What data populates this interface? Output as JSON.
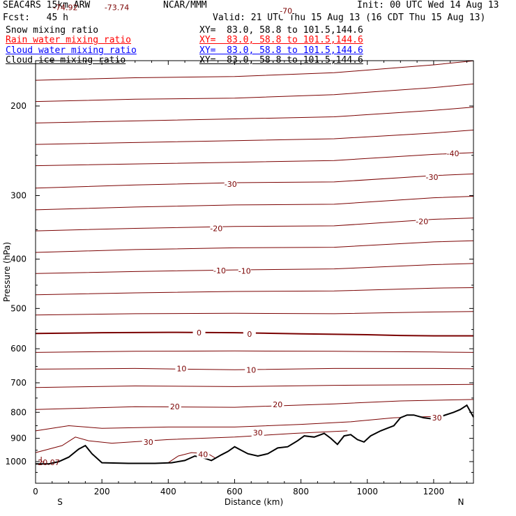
{
  "header": {
    "model": "SEAC4RS 15km ARW",
    "center": "NCAR/MMM",
    "init": "Init: 00 UTC Wed 14 Aug 13",
    "fcst": "Fcst:   45 h",
    "valid": "Valid: 21 UTC Thu 15 Aug 13 (16 CDT Thu 15 Aug 13)"
  },
  "fields": [
    {
      "name": "Snow mixing ratio",
      "xy": "XY=  83.0, 58.8 to 101.5,144.6",
      "color": "#000000"
    },
    {
      "name": "Rain water mixing ratio",
      "xy": "XY=  83.0, 58.8 to 101.5,144.6",
      "color": "#ff0000"
    },
    {
      "name": "Cloud water mixing ratio",
      "xy": "XY=  83.0, 58.8 to 101.5,144.6",
      "color": "#0000ff"
    },
    {
      "name": "Cloud ice mixing ratio",
      "xy": "XY=  83.0, 58.8 to 101.5,144.6",
      "color": "#000000"
    }
  ],
  "chart_data": {
    "type": "line",
    "xlabel": "Distance (km)",
    "ylabel": "Pressure (hPa)",
    "xlim": [
      0,
      1320
    ],
    "ylim": [
      1050,
      100
    ],
    "y_scale": "log",
    "x_ticks": [
      "0",
      "200",
      "400",
      "600",
      "800",
      "1000",
      "1200"
    ],
    "y_ticks": [
      "200",
      "300",
      "400",
      "500",
      "600",
      "700",
      "800",
      "900",
      "1000"
    ],
    "x_end_labels": {
      "left": "S",
      "right": "N"
    },
    "contour_color": "#7a0000",
    "isotherms": [
      {
        "label": "-70",
        "points": [
          [
            0,
            135
          ],
          [
            150,
            135
          ],
          [
            300,
            131
          ],
          [
            500,
            130
          ],
          [
            700,
            128
          ],
          [
            900,
            123
          ],
          [
            960,
            110
          ]
        ]
      },
      {
        "label": "",
        "points": [
          [
            0,
            148
          ],
          [
            300,
            146
          ],
          [
            600,
            145
          ],
          [
            900,
            142
          ],
          [
            1200,
            132
          ],
          [
            1320,
            130
          ]
        ]
      },
      {
        "label": "",
        "points": [
          [
            0,
            162
          ],
          [
            300,
            160
          ],
          [
            600,
            159
          ],
          [
            900,
            156
          ],
          [
            1200,
            150
          ],
          [
            1320,
            147
          ]
        ]
      },
      {
        "label": "",
        "points": [
          [
            0,
            178
          ],
          [
            300,
            176
          ],
          [
            600,
            175
          ],
          [
            900,
            172
          ],
          [
            1200,
            166
          ],
          [
            1320,
            163
          ]
        ]
      },
      {
        "label": "",
        "points": [
          [
            0,
            196
          ],
          [
            300,
            194
          ],
          [
            600,
            193
          ],
          [
            900,
            190
          ],
          [
            1200,
            184
          ],
          [
            1320,
            181
          ]
        ]
      },
      {
        "label": "",
        "points": [
          [
            0,
            216
          ],
          [
            300,
            214
          ],
          [
            600,
            212
          ],
          [
            900,
            210
          ],
          [
            1200,
            204
          ],
          [
            1320,
            201
          ]
        ]
      },
      {
        "label": "",
        "points": [
          [
            0,
            238
          ],
          [
            300,
            236
          ],
          [
            600,
            234
          ],
          [
            900,
            232
          ],
          [
            1200,
            226
          ],
          [
            1320,
            223
          ]
        ]
      },
      {
        "label": "-40",
        "points": [
          [
            0,
            262
          ],
          [
            300,
            260
          ],
          [
            600,
            258
          ],
          [
            900,
            256
          ],
          [
            1200,
            249
          ],
          [
            1320,
            247
          ]
        ]
      },
      {
        "label": "-30",
        "points": [
          [
            0,
            290
          ],
          [
            300,
            286
          ],
          [
            600,
            283
          ],
          [
            900,
            282
          ],
          [
            1200,
            274
          ],
          [
            1320,
            272
          ]
        ]
      },
      {
        "label": "",
        "points": [
          [
            0,
            320
          ],
          [
            300,
            316
          ],
          [
            600,
            313
          ],
          [
            900,
            312
          ],
          [
            1200,
            303
          ],
          [
            1320,
            301
          ]
        ]
      },
      {
        "label": "-20",
        "points": [
          [
            0,
            352
          ],
          [
            300,
            348
          ],
          [
            600,
            345
          ],
          [
            900,
            344
          ],
          [
            1200,
            334
          ],
          [
            1320,
            332
          ]
        ]
      },
      {
        "label": "",
        "points": [
          [
            0,
            388
          ],
          [
            300,
            383
          ],
          [
            600,
            380
          ],
          [
            900,
            379
          ],
          [
            1200,
            370
          ],
          [
            1320,
            368
          ]
        ]
      },
      {
        "label": "-10",
        "points": [
          [
            0,
            427
          ],
          [
            300,
            423
          ],
          [
            600,
            420
          ],
          [
            900,
            418
          ],
          [
            1200,
            410
          ],
          [
            1320,
            408
          ]
        ]
      },
      {
        "label": "",
        "points": [
          [
            0,
            470
          ],
          [
            300,
            466
          ],
          [
            600,
            463
          ],
          [
            900,
            462
          ],
          [
            1200,
            456
          ],
          [
            1320,
            455
          ]
        ]
      },
      {
        "label": "",
        "points": [
          [
            0,
            515
          ],
          [
            300,
            512
          ],
          [
            600,
            511
          ],
          [
            900,
            512
          ],
          [
            1200,
            508
          ],
          [
            1320,
            507
          ]
        ]
      },
      {
        "label": "0",
        "bold": true,
        "points": [
          [
            0,
            560
          ],
          [
            200,
            558
          ],
          [
            400,
            557
          ],
          [
            600,
            558
          ],
          [
            800,
            561
          ],
          [
            1000,
            563
          ],
          [
            1100,
            565
          ],
          [
            1200,
            566
          ],
          [
            1320,
            566
          ]
        ]
      },
      {
        "label": "",
        "points": [
          [
            0,
            610
          ],
          [
            300,
            607
          ],
          [
            600,
            606
          ],
          [
            900,
            607
          ],
          [
            1200,
            609
          ],
          [
            1320,
            610
          ]
        ]
      },
      {
        "label": "10",
        "points": [
          [
            0,
            658
          ],
          [
            300,
            656
          ],
          [
            600,
            660
          ],
          [
            900,
            656
          ],
          [
            1200,
            656
          ],
          [
            1320,
            657
          ]
        ]
      },
      {
        "label": "",
        "points": [
          [
            0,
            715
          ],
          [
            300,
            710
          ],
          [
            600,
            712
          ],
          [
            900,
            708
          ],
          [
            1200,
            706
          ],
          [
            1320,
            705
          ]
        ]
      },
      {
        "label": "20",
        "points": [
          [
            0,
            790
          ],
          [
            300,
            780
          ],
          [
            600,
            782
          ],
          [
            900,
            770
          ],
          [
            1100,
            760
          ],
          [
            1320,
            755
          ]
        ]
      },
      {
        "label": "",
        "points": [
          [
            0,
            870
          ],
          [
            100,
            850
          ],
          [
            200,
            860
          ],
          [
            400,
            855
          ],
          [
            600,
            855
          ],
          [
            800,
            845
          ],
          [
            950,
            835
          ],
          [
            1080,
            820
          ],
          [
            1200,
            815
          ],
          [
            1320,
            810
          ]
        ]
      },
      {
        "label": "30",
        "points": [
          [
            0,
            960
          ],
          [
            80,
            930
          ],
          [
            120,
            895
          ],
          [
            160,
            910
          ],
          [
            230,
            920
          ],
          [
            400,
            905
          ],
          [
            600,
            895
          ],
          [
            780,
            880
          ],
          [
            940,
            870
          ]
        ]
      },
      {
        "label": "40",
        "points": [
          [
            400,
            1005
          ],
          [
            430,
            975
          ],
          [
            470,
            960
          ],
          [
            520,
            965
          ],
          [
            560,
            1000
          ]
        ]
      }
    ],
    "terrain": [
      [
        0,
        1010
      ],
      [
        40,
        1010
      ],
      [
        70,
        1000
      ],
      [
        100,
        980
      ],
      [
        130,
        945
      ],
      [
        150,
        930
      ],
      [
        170,
        965
      ],
      [
        200,
        1005
      ],
      [
        280,
        1008
      ],
      [
        360,
        1008
      ],
      [
        410,
        1005
      ],
      [
        450,
        995
      ],
      [
        480,
        975
      ],
      [
        510,
        985
      ],
      [
        530,
        995
      ],
      [
        560,
        970
      ],
      [
        580,
        955
      ],
      [
        600,
        935
      ],
      [
        620,
        950
      ],
      [
        640,
        965
      ],
      [
        670,
        975
      ],
      [
        700,
        965
      ],
      [
        730,
        940
      ],
      [
        760,
        935
      ],
      [
        790,
        910
      ],
      [
        810,
        890
      ],
      [
        840,
        895
      ],
      [
        870,
        880
      ],
      [
        890,
        900
      ],
      [
        910,
        925
      ],
      [
        930,
        890
      ],
      [
        950,
        885
      ],
      [
        970,
        905
      ],
      [
        990,
        915
      ],
      [
        1010,
        890
      ],
      [
        1040,
        870
      ],
      [
        1060,
        860
      ],
      [
        1080,
        850
      ],
      [
        1100,
        820
      ],
      [
        1120,
        810
      ],
      [
        1140,
        810
      ],
      [
        1170,
        820
      ],
      [
        1200,
        825
      ],
      [
        1230,
        812
      ],
      [
        1260,
        800
      ],
      [
        1280,
        790
      ],
      [
        1300,
        775
      ],
      [
        1320,
        818
      ]
    ],
    "annotations": [
      {
        "text": "-74.92",
        "x": 90,
        "p": 128
      },
      {
        "text": "-73.74",
        "x": 245,
        "p": 128
      },
      {
        "text": "L",
        "x": 215,
        "p": 120
      },
      {
        "text": "L",
        "x": 20,
        "p": 990
      },
      {
        "text": "20.07",
        "x": 40,
        "p": 1003
      }
    ],
    "label_positions": [
      {
        "text": "-70",
        "x": 755,
        "p": 130
      },
      {
        "text": "-40",
        "x": 1258,
        "p": 248
      },
      {
        "text": "-30",
        "x": 588,
        "p": 285
      },
      {
        "text": "-30",
        "x": 1195,
        "p": 276
      },
      {
        "text": "-20",
        "x": 545,
        "p": 348
      },
      {
        "text": "-20",
        "x": 1165,
        "p": 337
      },
      {
        "text": "-10",
        "x": 555,
        "p": 421
      },
      {
        "text": "-10",
        "x": 630,
        "p": 422
      },
      {
        "text": "0",
        "x": 493,
        "p": 558
      },
      {
        "text": "0",
        "x": 645,
        "p": 561
      },
      {
        "text": "10",
        "x": 440,
        "p": 656
      },
      {
        "text": "10",
        "x": 650,
        "p": 660
      },
      {
        "text": "20",
        "x": 420,
        "p": 779
      },
      {
        "text": "20",
        "x": 730,
        "p": 772
      },
      {
        "text": "30",
        "x": 340,
        "p": 915
      },
      {
        "text": "30",
        "x": 670,
        "p": 877
      },
      {
        "text": "30",
        "x": 1210,
        "p": 820
      },
      {
        "text": "40",
        "x": 505,
        "p": 968
      }
    ]
  }
}
